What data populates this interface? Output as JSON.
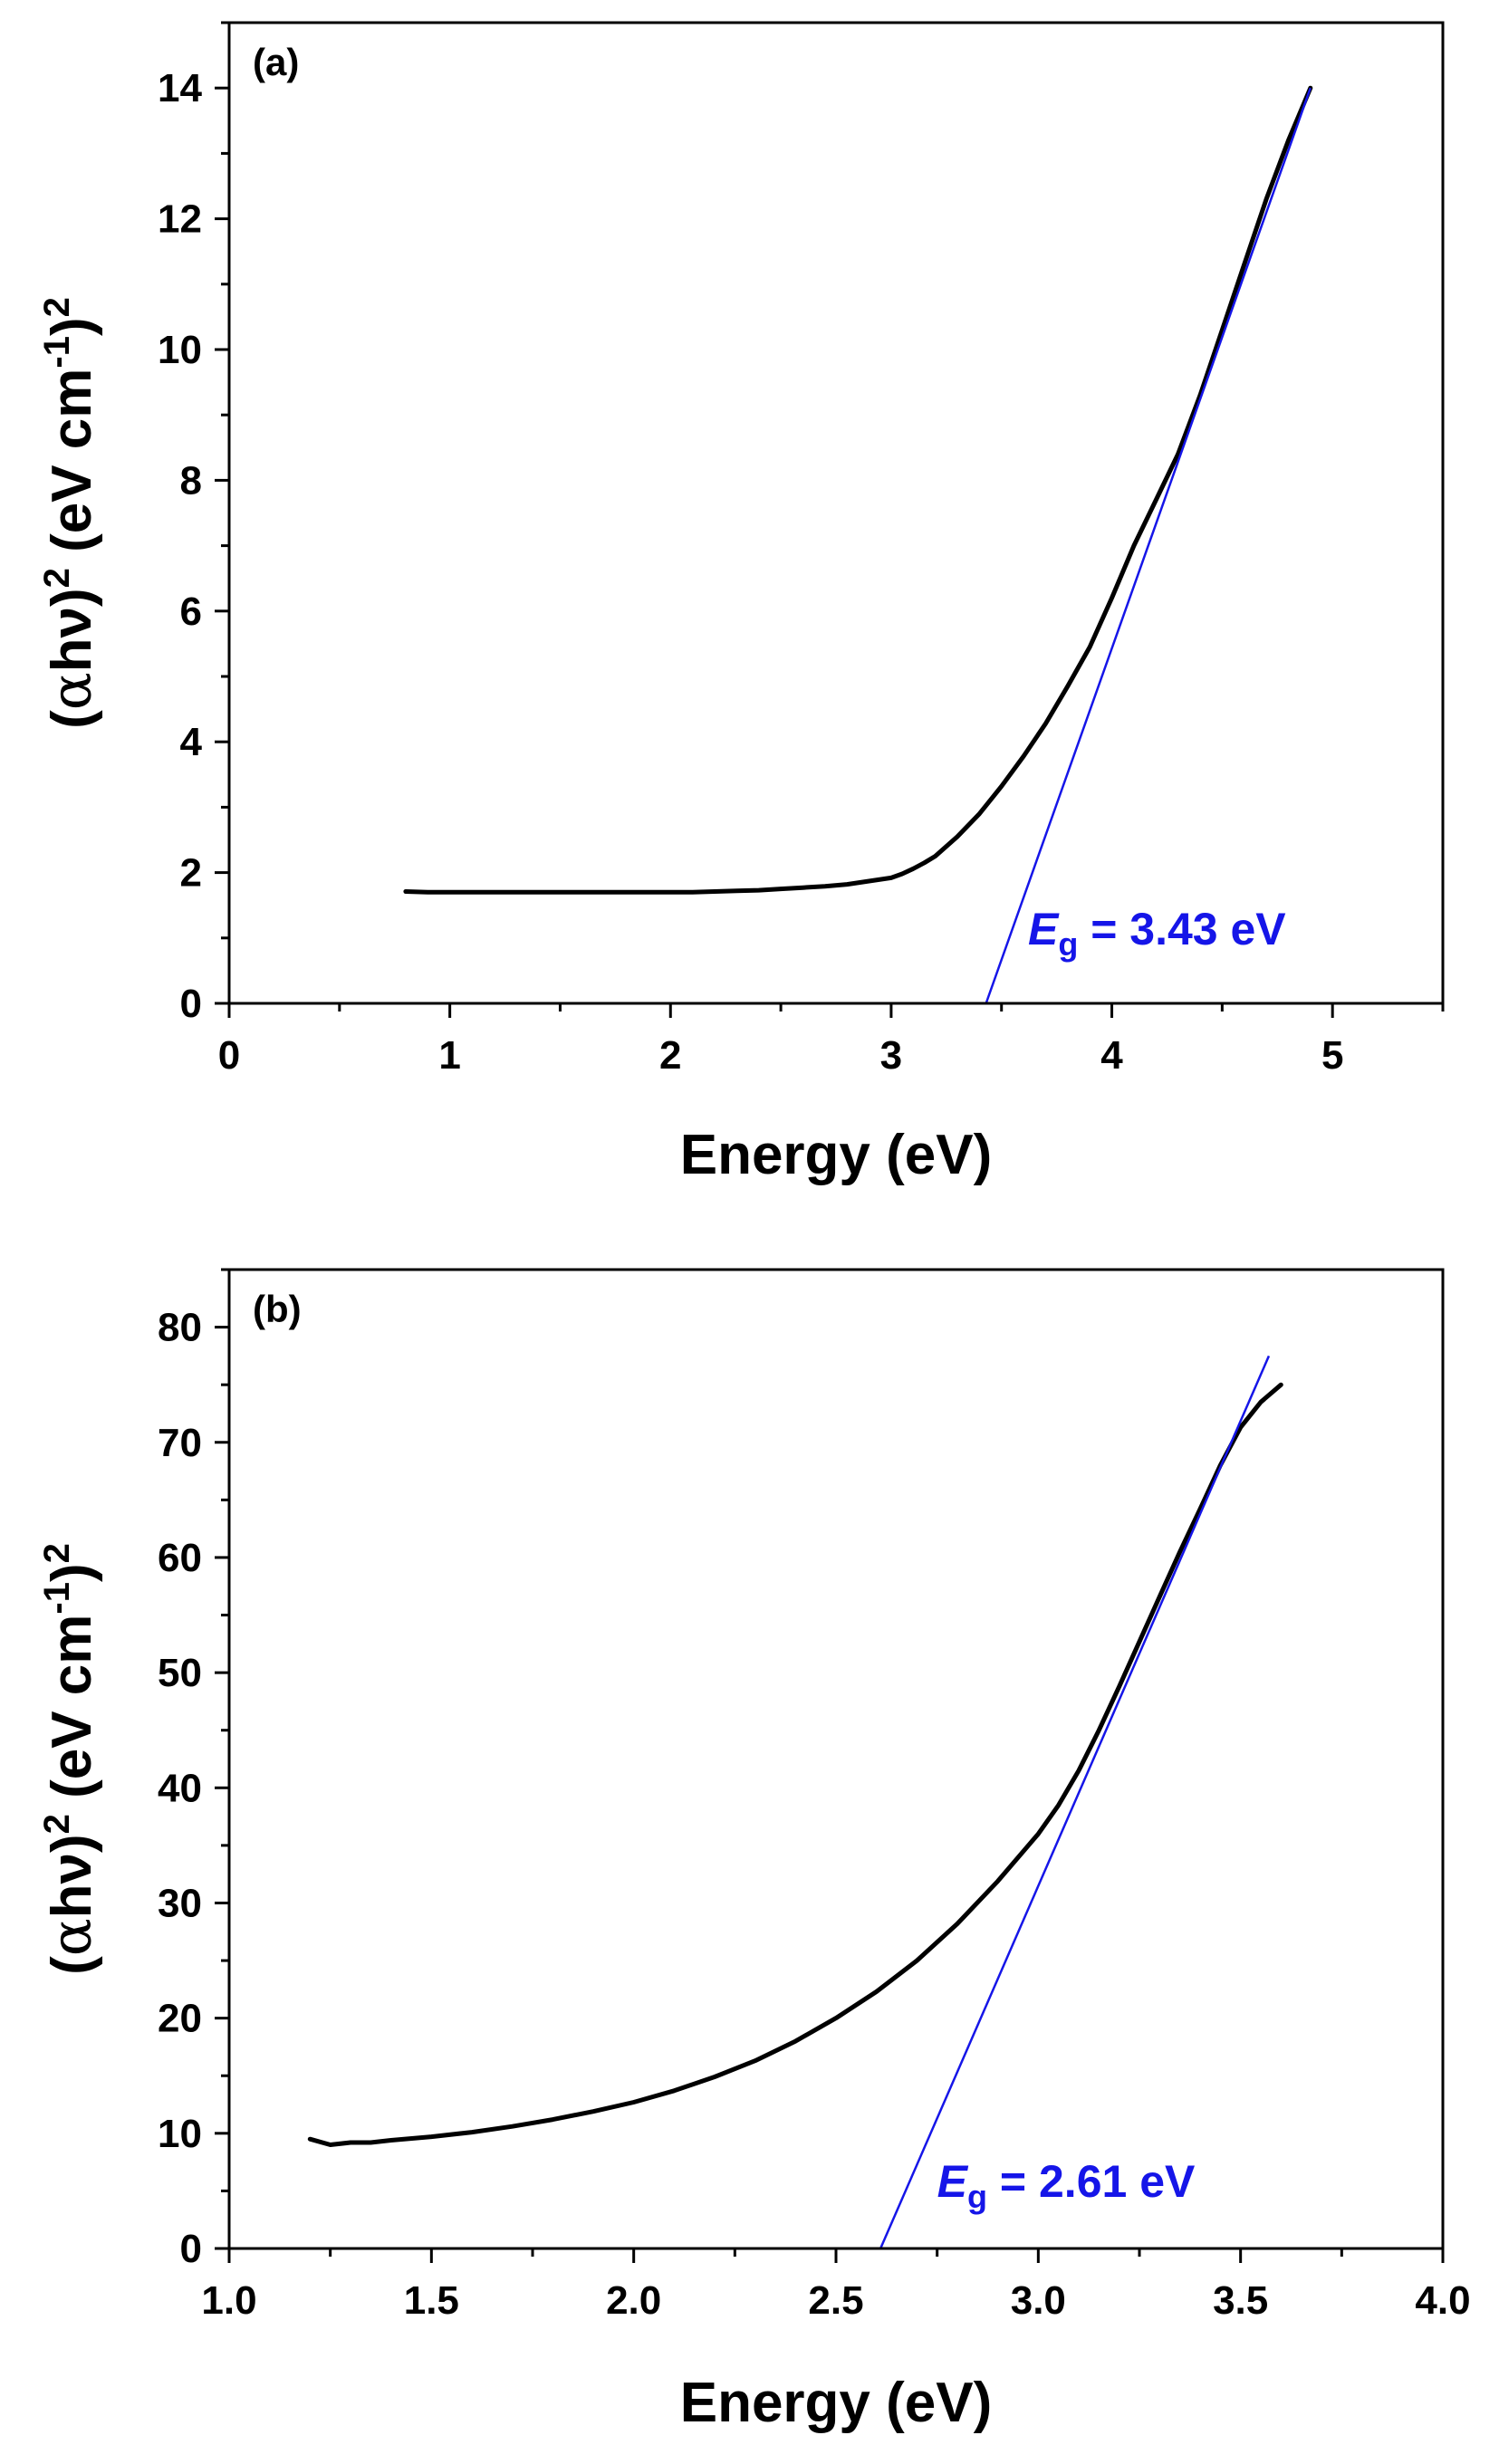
{
  "chart_data": [
    {
      "type": "line",
      "panel_label": "(a)",
      "xlabel": "Energy (eV)",
      "ylabel": {
        "pre": "(",
        "alpha": "α",
        "mid": "hν)",
        "sup1": "2",
        "mid2": " (eV cm",
        "sup2": "-1",
        "post": ")",
        "sup3": "2"
      },
      "xlim": [
        0,
        5.5
      ],
      "ylim": [
        0,
        15
      ],
      "xticks": [
        0,
        1,
        2,
        3,
        4,
        5
      ],
      "xtick_labels": [
        "0",
        "1",
        "2",
        "3",
        "4",
        "5"
      ],
      "xminor_step": 0.5,
      "yticks": [
        0,
        2,
        4,
        6,
        8,
        10,
        12,
        14
      ],
      "ytick_labels": [
        "0",
        "2",
        "4",
        "6",
        "8",
        "10",
        "12",
        "14"
      ],
      "yminor_step": 1,
      "grid": false,
      "series": [
        {
          "name": "(αhν)²",
          "color": "#000000",
          "x": [
            0.8,
            0.9,
            1.0,
            1.2,
            1.4,
            1.6,
            1.8,
            2.0,
            2.1,
            2.2,
            2.3,
            2.4,
            2.5,
            2.6,
            2.7,
            2.8,
            2.9,
            3.0,
            3.05,
            3.1,
            3.15,
            3.2,
            3.3,
            3.4,
            3.5,
            3.6,
            3.7,
            3.8,
            3.9,
            4.0,
            4.1,
            4.2,
            4.3,
            4.4,
            4.5,
            4.6,
            4.7,
            4.8,
            4.9
          ],
          "y": [
            1.71,
            1.7,
            1.7,
            1.7,
            1.7,
            1.7,
            1.7,
            1.7,
            1.7,
            1.71,
            1.72,
            1.73,
            1.75,
            1.77,
            1.79,
            1.82,
            1.87,
            1.92,
            1.98,
            2.06,
            2.15,
            2.25,
            2.55,
            2.9,
            3.32,
            3.78,
            4.28,
            4.85,
            5.45,
            6.2,
            7.0,
            7.7,
            8.4,
            9.3,
            10.3,
            11.3,
            12.3,
            13.2,
            14.0
          ]
        }
      ],
      "fit_line": {
        "color": "#1515e8",
        "x": [
          3.43,
          4.9
        ],
        "y": [
          0,
          14.0
        ]
      },
      "annotation": {
        "italic": "E",
        "sub": "g",
        "text": " = 3.43 eV",
        "color": "#1515e8",
        "x": 3.62,
        "y": 0.9
      }
    },
    {
      "type": "line",
      "panel_label": "(b)",
      "xlabel": "Energy (eV)",
      "ylabel": {
        "pre": "(",
        "alpha": "α",
        "mid": "hν)",
        "sup1": "2",
        "mid2": " (eV cm",
        "sup2": "-1",
        "post": ")",
        "sup3": "2"
      },
      "xlim": [
        1.0,
        4.0
      ],
      "ylim": [
        0,
        85
      ],
      "xticks": [
        1.0,
        1.5,
        2.0,
        2.5,
        3.0,
        3.5,
        4.0
      ],
      "xtick_labels": [
        "1.0",
        "1.5",
        "2.0",
        "2.5",
        "3.0",
        "3.5",
        "4.0"
      ],
      "xminor_step": 0.25,
      "yticks": [
        0,
        10,
        20,
        30,
        40,
        50,
        60,
        70,
        80
      ],
      "ytick_labels": [
        "0",
        "10",
        "20",
        "30",
        "40",
        "50",
        "60",
        "70",
        "80"
      ],
      "yminor_step": 5,
      "grid": false,
      "series": [
        {
          "name": "(αhν)²",
          "color": "#000000",
          "x": [
            1.2,
            1.25,
            1.3,
            1.35,
            1.4,
            1.5,
            1.6,
            1.7,
            1.8,
            1.9,
            2.0,
            2.1,
            2.2,
            2.3,
            2.4,
            2.5,
            2.6,
            2.7,
            2.8,
            2.9,
            3.0,
            3.05,
            3.1,
            3.15,
            3.2,
            3.25,
            3.3,
            3.35,
            3.4,
            3.45,
            3.5,
            3.55,
            3.6
          ],
          "y": [
            9.5,
            9.0,
            9.2,
            9.2,
            9.4,
            9.7,
            10.1,
            10.6,
            11.2,
            11.9,
            12.7,
            13.7,
            14.9,
            16.3,
            18.0,
            20.0,
            22.3,
            25.0,
            28.2,
            31.9,
            36.0,
            38.5,
            41.5,
            45.0,
            48.8,
            52.7,
            56.6,
            60.5,
            64.2,
            68.0,
            71.3,
            73.5,
            75.0
          ]
        }
      ],
      "fit_line": {
        "color": "#1515e8",
        "x": [
          2.61,
          3.57
        ],
        "y": [
          0,
          77.5
        ]
      },
      "annotation": {
        "italic": "E",
        "sub": "g",
        "text": " = 2.61 eV",
        "color": "#1515e8",
        "x": 2.75,
        "y": 4.5
      }
    }
  ]
}
